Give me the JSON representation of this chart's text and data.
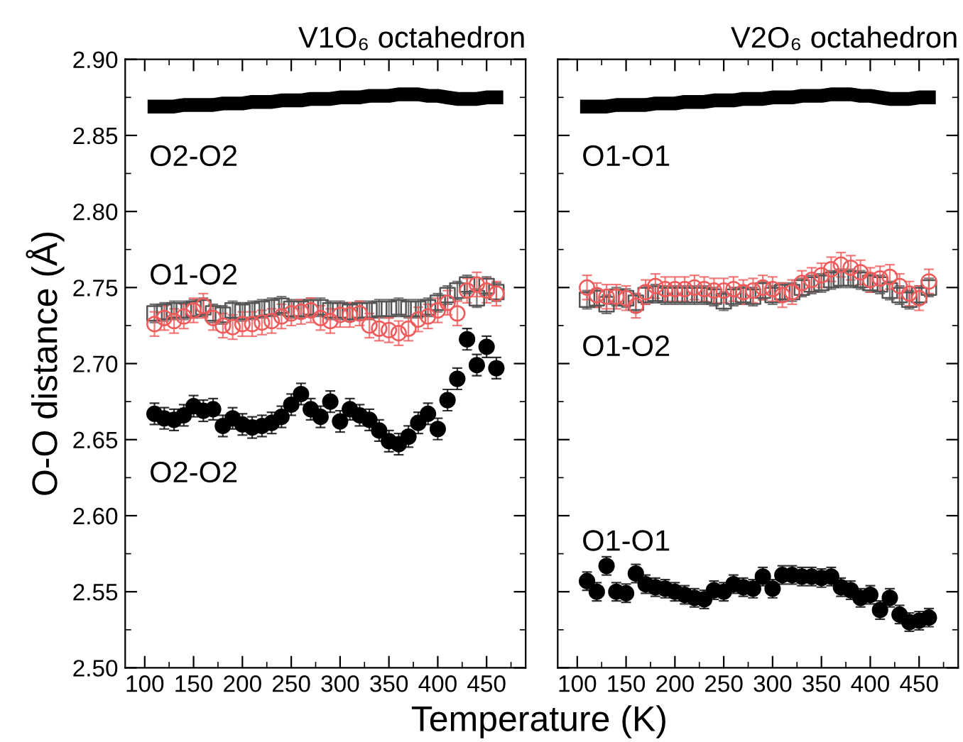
{
  "chart_data": [
    {
      "type": "scatter",
      "title": "V1O₆ octahedron",
      "ylabel": "O-O distance (Å)",
      "xlabel": "Temperature (K)",
      "x": [
        110,
        120,
        130,
        140,
        150,
        160,
        170,
        180,
        190,
        200,
        210,
        220,
        230,
        240,
        250,
        260,
        270,
        280,
        290,
        300,
        310,
        320,
        330,
        340,
        350,
        360,
        370,
        380,
        390,
        400,
        410,
        420,
        430,
        440,
        450,
        460
      ],
      "xlim": [
        80,
        490
      ],
      "xticks": [
        100,
        150,
        200,
        250,
        300,
        350,
        400,
        450
      ],
      "ylim": [
        2.5,
        2.9
      ],
      "yticks": [
        {
          "value": 2.5,
          "label": "2.50"
        },
        {
          "value": 2.55,
          "label": "2.55"
        },
        {
          "value": 2.6,
          "label": "2.60"
        },
        {
          "value": 2.65,
          "label": "2.65"
        },
        {
          "value": 2.7,
          "label": "2.70"
        },
        {
          "value": 2.75,
          "label": "2.75"
        },
        {
          "value": 2.8,
          "label": "2.80"
        },
        {
          "value": 2.85,
          "label": "2.85"
        },
        {
          "value": 2.9,
          "label": "2.90"
        }
      ],
      "grid": false,
      "legend": false,
      "series": [
        {
          "type": "line",
          "color": "#000000",
          "marker": "none",
          "values": [
            2.869,
            2.869,
            2.869,
            2.87,
            2.87,
            2.87,
            2.87,
            2.871,
            2.871,
            2.871,
            2.872,
            2.872,
            2.872,
            2.873,
            2.873,
            2.873,
            2.874,
            2.874,
            2.874,
            2.875,
            2.875,
            2.875,
            2.876,
            2.876,
            2.876,
            2.877,
            2.877,
            2.877,
            2.876,
            2.876,
            2.875,
            2.874,
            2.874,
            2.874,
            2.875,
            2.875
          ]
        },
        {
          "color": "#555555",
          "marker": "square",
          "values": [
            2.733,
            2.734,
            2.735,
            2.735,
            2.736,
            2.737,
            2.733,
            2.732,
            2.735,
            2.734,
            2.735,
            2.736,
            2.737,
            2.738,
            2.736,
            2.736,
            2.737,
            2.737,
            2.735,
            2.735,
            2.734,
            2.735,
            2.735,
            2.736,
            2.736,
            2.737,
            2.736,
            2.736,
            2.737,
            2.74,
            2.745,
            2.748,
            2.752,
            2.743,
            2.751,
            2.747
          ],
          "errors": [
            0.006,
            0.006,
            0.006,
            0.006,
            0.006,
            0.006,
            0.006,
            0.006,
            0.006,
            0.006,
            0.006,
            0.006,
            0.006,
            0.006,
            0.006,
            0.006,
            0.006,
            0.006,
            0.006,
            0.006,
            0.006,
            0.006,
            0.006,
            0.006,
            0.006,
            0.006,
            0.006,
            0.006,
            0.006,
            0.006,
            0.006,
            0.006,
            0.006,
            0.006,
            0.006,
            0.006
          ]
        },
        {
          "color": "#f05a5a",
          "marker": "circle",
          "values": [
            2.726,
            2.73,
            2.728,
            2.731,
            2.735,
            2.738,
            2.73,
            2.725,
            2.724,
            2.726,
            2.726,
            2.727,
            2.728,
            2.731,
            2.733,
            2.734,
            2.735,
            2.73,
            2.728,
            2.732,
            2.732,
            2.733,
            2.725,
            2.723,
            2.722,
            2.72,
            2.723,
            2.729,
            2.731,
            2.735,
            2.74,
            2.733,
            2.748,
            2.752,
            2.748,
            2.746
          ],
          "errors": [
            0.008,
            0.008,
            0.008,
            0.008,
            0.008,
            0.008,
            0.008,
            0.008,
            0.008,
            0.008,
            0.008,
            0.008,
            0.008,
            0.008,
            0.008,
            0.008,
            0.008,
            0.008,
            0.008,
            0.008,
            0.008,
            0.008,
            0.008,
            0.008,
            0.008,
            0.008,
            0.008,
            0.008,
            0.008,
            0.008,
            0.008,
            0.008,
            0.008,
            0.008,
            0.008,
            0.008
          ]
        },
        {
          "color": "#000000",
          "marker": "circle",
          "values": [
            2.667,
            2.664,
            2.663,
            2.666,
            2.672,
            2.669,
            2.67,
            2.659,
            2.664,
            2.66,
            2.658,
            2.659,
            2.661,
            2.665,
            2.673,
            2.68,
            2.67,
            2.665,
            2.675,
            2.662,
            2.67,
            2.666,
            2.663,
            2.656,
            2.649,
            2.647,
            2.652,
            2.661,
            2.667,
            2.657,
            2.676,
            2.69,
            2.716,
            2.699,
            2.711,
            2.697
          ],
          "errors": [
            0.007,
            0.007,
            0.007,
            0.007,
            0.007,
            0.007,
            0.007,
            0.007,
            0.007,
            0.007,
            0.007,
            0.007,
            0.007,
            0.007,
            0.007,
            0.007,
            0.007,
            0.007,
            0.007,
            0.007,
            0.007,
            0.007,
            0.007,
            0.007,
            0.007,
            0.007,
            0.007,
            0.007,
            0.007,
            0.007,
            0.007,
            0.007,
            0.007,
            0.007,
            0.007,
            0.007
          ]
        }
      ],
      "annotations": [
        "O2-O2",
        "O1-O2",
        "O2-O2"
      ]
    },
    {
      "type": "scatter",
      "title": "V2O₆ octahedron",
      "tick_labels": "x",
      "x": [
        110,
        120,
        130,
        140,
        150,
        160,
        170,
        180,
        190,
        200,
        210,
        220,
        230,
        240,
        250,
        260,
        270,
        280,
        290,
        300,
        310,
        320,
        330,
        340,
        350,
        360,
        370,
        380,
        390,
        400,
        410,
        420,
        430,
        440,
        450,
        460
      ],
      "xlim": [
        80,
        490
      ],
      "xticks": [
        100,
        150,
        200,
        250,
        300,
        350,
        400,
        450
      ],
      "ylim": [
        2.5,
        2.9
      ],
      "yticks": [
        2.5,
        2.55,
        2.6,
        2.65,
        2.7,
        2.75,
        2.8,
        2.85,
        2.9
      ],
      "grid": false,
      "legend": false,
      "series": [
        {
          "type": "line",
          "color": "#000000",
          "marker": "none",
          "values": [
            2.869,
            2.869,
            2.869,
            2.87,
            2.87,
            2.87,
            2.87,
            2.871,
            2.871,
            2.871,
            2.872,
            2.872,
            2.872,
            2.873,
            2.873,
            2.873,
            2.874,
            2.874,
            2.874,
            2.875,
            2.875,
            2.875,
            2.876,
            2.876,
            2.876,
            2.877,
            2.877,
            2.877,
            2.876,
            2.876,
            2.875,
            2.874,
            2.874,
            2.874,
            2.875,
            2.875
          ]
        },
        {
          "color": "#555555",
          "marker": "square",
          "values": [
            2.742,
            2.743,
            2.739,
            2.744,
            2.743,
            2.74,
            2.745,
            2.746,
            2.745,
            2.745,
            2.745,
            2.745,
            2.745,
            2.744,
            2.741,
            2.744,
            2.745,
            2.744,
            2.748,
            2.745,
            2.747,
            2.747,
            2.75,
            2.752,
            2.753,
            2.755,
            2.756,
            2.756,
            2.755,
            2.753,
            2.752,
            2.748,
            2.745,
            2.742,
            2.745,
            2.75
          ],
          "errors": [
            0.006,
            0.006,
            0.006,
            0.006,
            0.006,
            0.006,
            0.006,
            0.006,
            0.006,
            0.006,
            0.006,
            0.006,
            0.006,
            0.006,
            0.006,
            0.006,
            0.006,
            0.006,
            0.006,
            0.006,
            0.006,
            0.006,
            0.006,
            0.006,
            0.006,
            0.006,
            0.006,
            0.006,
            0.006,
            0.006,
            0.006,
            0.006,
            0.006,
            0.006,
            0.006,
            0.006
          ]
        },
        {
          "color": "#f05a5a",
          "marker": "circle",
          "values": [
            2.75,
            2.745,
            2.744,
            2.744,
            2.743,
            2.738,
            2.747,
            2.751,
            2.749,
            2.749,
            2.749,
            2.75,
            2.749,
            2.748,
            2.748,
            2.749,
            2.747,
            2.748,
            2.75,
            2.749,
            2.745,
            2.747,
            2.753,
            2.755,
            2.758,
            2.762,
            2.765,
            2.763,
            2.76,
            2.755,
            2.756,
            2.757,
            2.751,
            2.746,
            2.743,
            2.754
          ],
          "errors": [
            0.008,
            0.008,
            0.008,
            0.008,
            0.008,
            0.008,
            0.008,
            0.008,
            0.008,
            0.008,
            0.008,
            0.008,
            0.008,
            0.008,
            0.008,
            0.008,
            0.008,
            0.008,
            0.008,
            0.008,
            0.008,
            0.008,
            0.008,
            0.008,
            0.008,
            0.008,
            0.008,
            0.008,
            0.008,
            0.008,
            0.008,
            0.008,
            0.008,
            0.008,
            0.008,
            0.008
          ]
        },
        {
          "color": "#000000",
          "marker": "circle",
          "values": [
            2.557,
            2.55,
            2.567,
            2.55,
            2.549,
            2.562,
            2.555,
            2.553,
            2.552,
            2.55,
            2.548,
            2.546,
            2.545,
            2.551,
            2.55,
            2.555,
            2.553,
            2.552,
            2.56,
            2.552,
            2.561,
            2.561,
            2.56,
            2.56,
            2.559,
            2.56,
            2.553,
            2.551,
            2.546,
            2.548,
            2.538,
            2.546,
            2.535,
            2.53,
            2.531,
            2.533
          ],
          "errors": [
            0.006,
            0.006,
            0.006,
            0.006,
            0.006,
            0.006,
            0.006,
            0.006,
            0.006,
            0.006,
            0.006,
            0.006,
            0.006,
            0.006,
            0.006,
            0.006,
            0.006,
            0.006,
            0.006,
            0.006,
            0.006,
            0.006,
            0.006,
            0.006,
            0.006,
            0.006,
            0.006,
            0.006,
            0.006,
            0.006,
            0.006,
            0.006,
            0.006,
            0.006,
            0.006,
            0.006
          ]
        }
      ],
      "annotations": [
        "O1-O1",
        "O1-O2",
        "O1-O1"
      ]
    }
  ]
}
